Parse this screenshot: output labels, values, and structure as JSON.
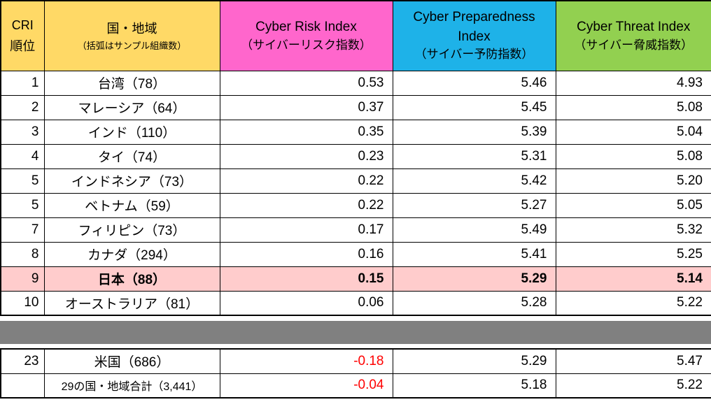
{
  "colors": {
    "rank_header_bg": "#FFD966",
    "region_header_bg": "#FFD966",
    "cri_header_bg": "#FF66CC",
    "cpi_header_bg": "#1EB2E8",
    "cti_header_bg": "#92D050",
    "highlight_row_bg": "#FFCCCC",
    "separator_bg": "#808080",
    "negative_value_color": "#FF0000",
    "border_color": "#000000"
  },
  "chart_data": {
    "type": "table",
    "columns": [
      {
        "key": "rank",
        "label_line1": "CRI",
        "label_line2": "順位",
        "bg": "#FFD966"
      },
      {
        "key": "region",
        "label_line1": "国・地域",
        "label_line2": "（括弧はサンプル組織数）",
        "bg": "#FFD966"
      },
      {
        "key": "cri",
        "label_line1": "Cyber Risk Index",
        "label_line2": "（サイバーリスク指数）",
        "bg": "#FF66CC"
      },
      {
        "key": "cpi",
        "label_line1": "Cyber Preparedness\nIndex",
        "label_line2": "（サイバー予防指数）",
        "bg": "#1EB2E8"
      },
      {
        "key": "cti",
        "label_line1": "Cyber Threat Index",
        "label_line2": "（サイバー脅威指数）",
        "bg": "#92D050"
      }
    ],
    "main_rows": [
      {
        "rank": "1",
        "region": "台湾（78）",
        "cri": "0.53",
        "cpi": "5.46",
        "cti": "4.93",
        "highlight": false
      },
      {
        "rank": "2",
        "region": "マレーシア（64）",
        "cri": "0.37",
        "cpi": "5.45",
        "cti": "5.08",
        "highlight": false
      },
      {
        "rank": "3",
        "region": "インド（110）",
        "cri": "0.35",
        "cpi": "5.39",
        "cti": "5.04",
        "highlight": false
      },
      {
        "rank": "4",
        "region": "タイ（74）",
        "cri": "0.23",
        "cpi": "5.31",
        "cti": "5.08",
        "highlight": false
      },
      {
        "rank": "5",
        "region": "インドネシア（73）",
        "cri": "0.22",
        "cpi": "5.42",
        "cti": "5.20",
        "highlight": false
      },
      {
        "rank": "5",
        "region": "ベトナム（59）",
        "cri": "0.22",
        "cpi": "5.27",
        "cti": "5.05",
        "highlight": false
      },
      {
        "rank": "7",
        "region": "フィリピン（73）",
        "cri": "0.17",
        "cpi": "5.49",
        "cti": "5.32",
        "highlight": false
      },
      {
        "rank": "8",
        "region": "カナダ（294）",
        "cri": "0.16",
        "cpi": "5.41",
        "cti": "5.25",
        "highlight": false
      },
      {
        "rank": "9",
        "region": "日本（88）",
        "cri": "0.15",
        "cpi": "5.29",
        "cti": "5.14",
        "highlight": true
      },
      {
        "rank": "10",
        "region": "オーストラリア（81）",
        "cri": "0.06",
        "cpi": "5.28",
        "cti": "5.22",
        "highlight": false
      }
    ],
    "bottom_rows": [
      {
        "rank": "23",
        "region": "米国（686）",
        "cri": "-0.18",
        "cpi": "5.29",
        "cti": "5.47",
        "negative_cri": true,
        "total": false
      },
      {
        "rank": "",
        "region": "29の国・地域合計（3,441）",
        "cri": "-0.04",
        "cpi": "5.18",
        "cti": "5.22",
        "negative_cri": true,
        "total": true
      }
    ]
  }
}
